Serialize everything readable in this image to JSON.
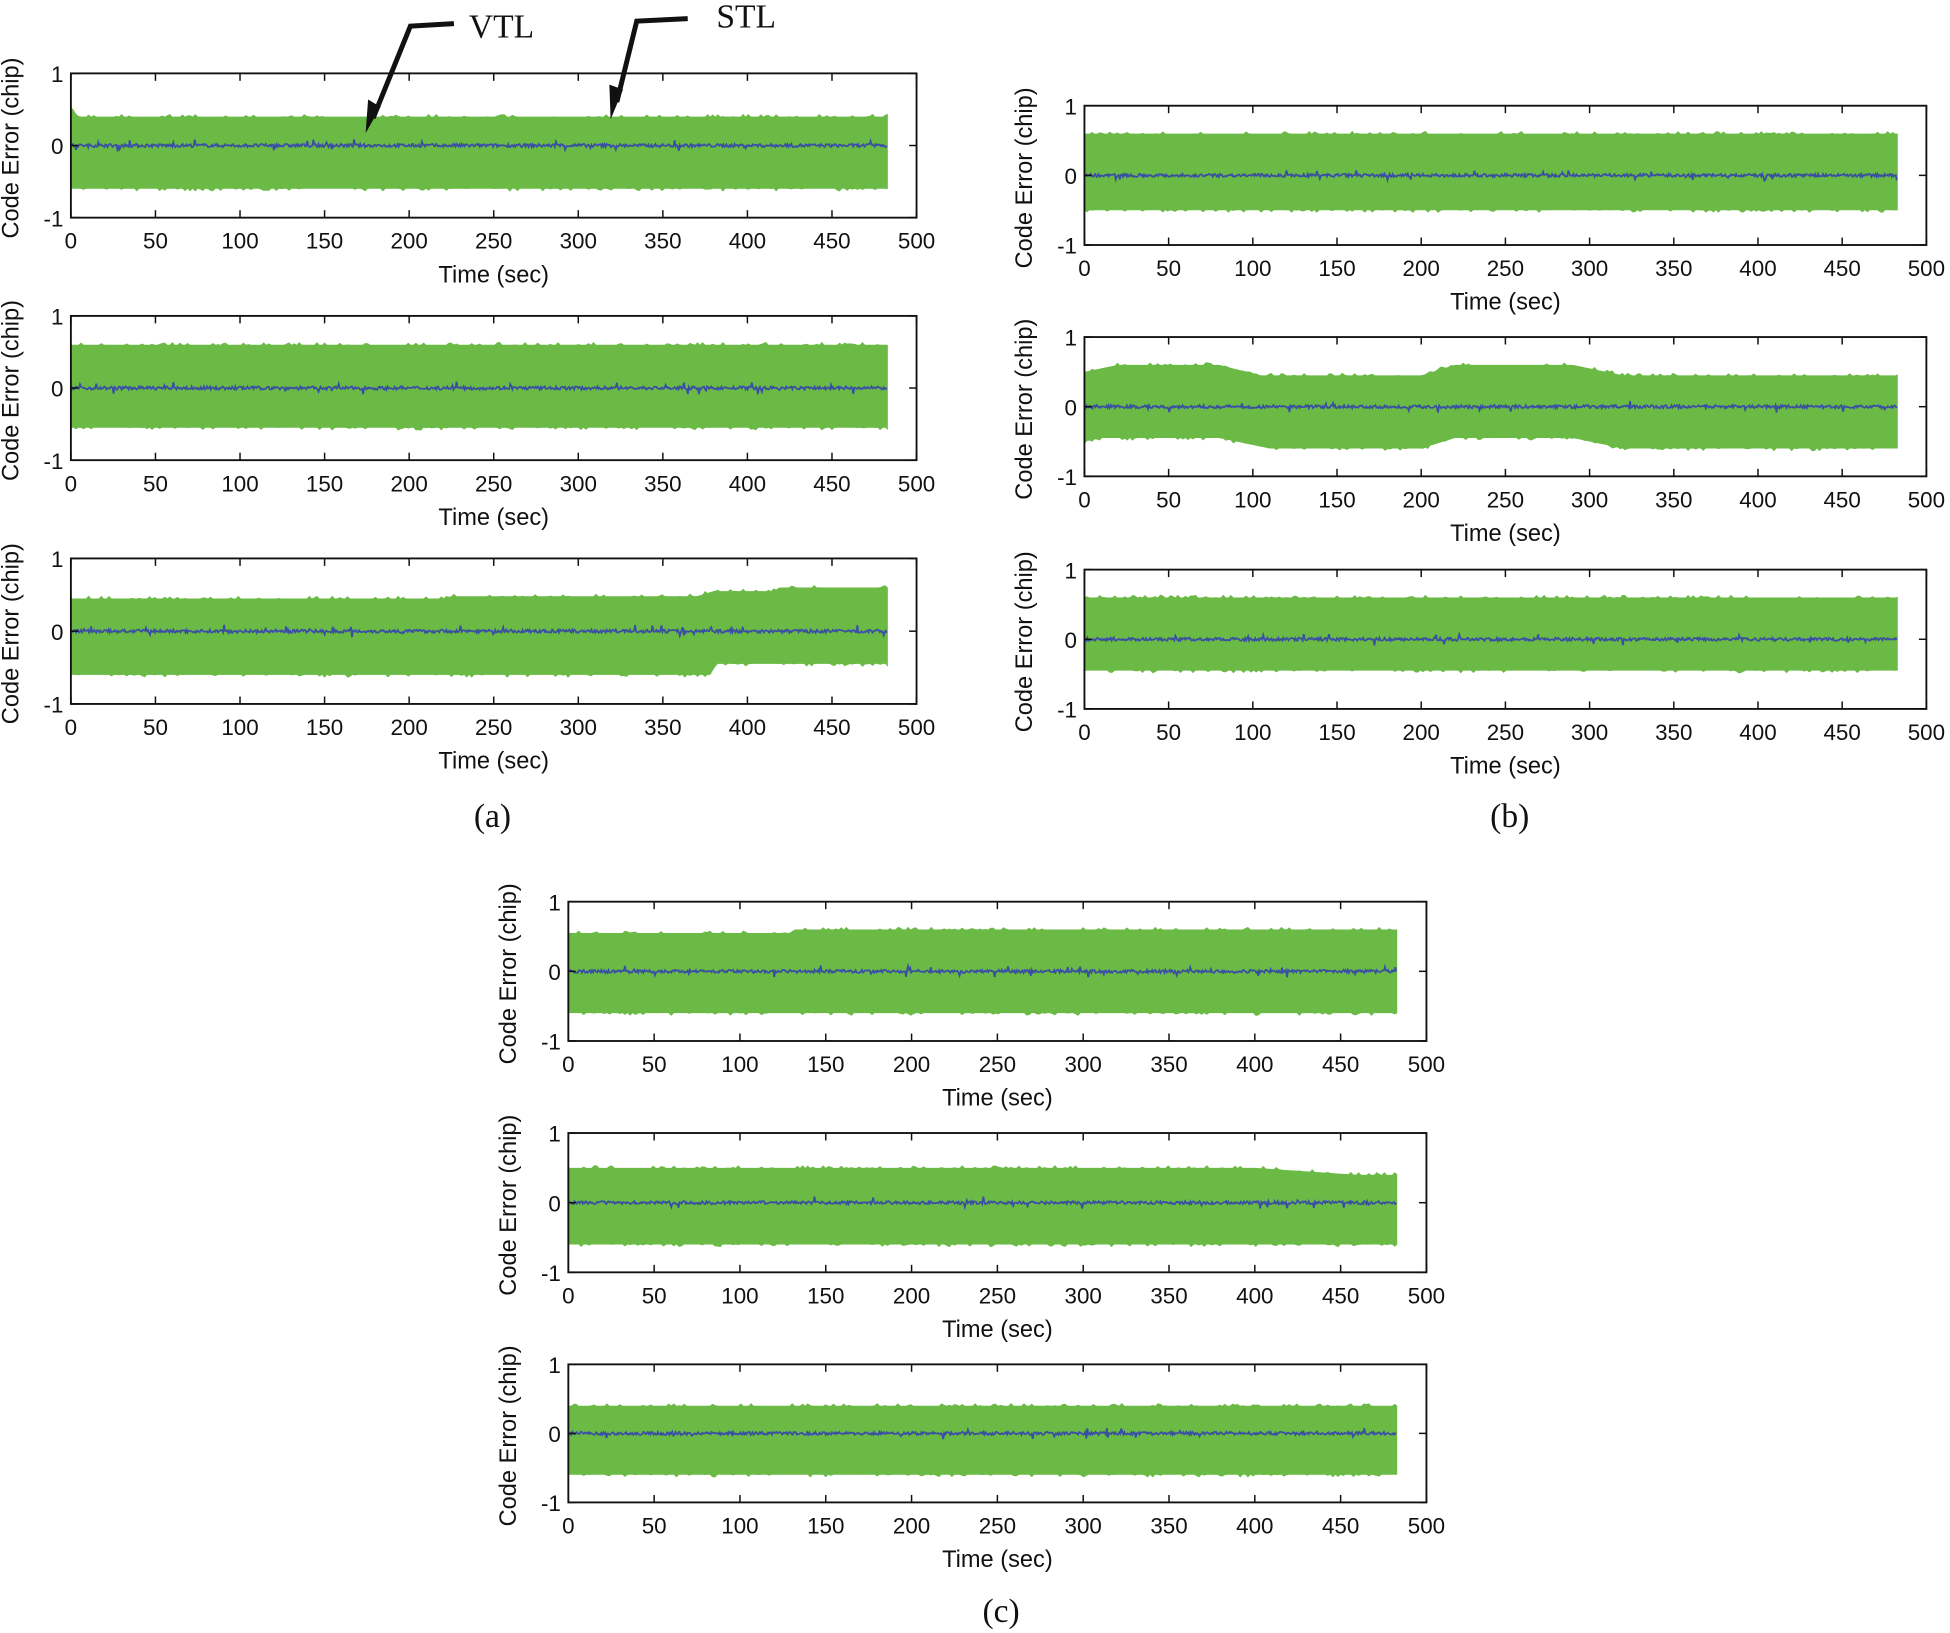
{
  "colors": {
    "stl": "#6aba45",
    "vtl": "#3a4fa3",
    "axis": "#111111"
  },
  "annotations": {
    "vtl": "VTL",
    "stl": "STL"
  },
  "panel_labels": {
    "a": "(a)",
    "b": "(b)",
    "c": "(c)"
  },
  "chart_data": [
    {
      "type": "area",
      "panel": "a",
      "index": 1,
      "xlabel": "Time (sec)",
      "ylabel": "Code Error (chip)",
      "xlim": [
        0,
        500
      ],
      "ylim": [
        -1,
        1
      ],
      "xticks": [
        0,
        50,
        100,
        150,
        200,
        250,
        300,
        350,
        400,
        450,
        500
      ],
      "yticks": [
        -1,
        0,
        1
      ],
      "grid": false,
      "x_end": 483,
      "series": [
        {
          "name": "STL",
          "upper": [
            [
              0,
              0.5
            ],
            [
              5,
              0.4
            ],
            [
              483,
              0.4
            ]
          ],
          "lower": [
            [
              0,
              -0.6
            ],
            [
              483,
              -0.6
            ]
          ]
        },
        {
          "name": "VTL",
          "amplitude": 0.05
        }
      ]
    },
    {
      "type": "area",
      "panel": "a",
      "index": 2,
      "xlabel": "Time (sec)",
      "ylabel": "Code Error (chip)",
      "xlim": [
        0,
        500
      ],
      "ylim": [
        -1,
        1
      ],
      "xticks": [
        0,
        50,
        100,
        150,
        200,
        250,
        300,
        350,
        400,
        450,
        500
      ],
      "yticks": [
        -1,
        0,
        1
      ],
      "grid": false,
      "x_end": 483,
      "series": [
        {
          "name": "STL",
          "upper": [
            [
              0,
              0.6
            ],
            [
              483,
              0.6
            ]
          ],
          "lower": [
            [
              0,
              -0.55
            ],
            [
              483,
              -0.55
            ]
          ]
        },
        {
          "name": "VTL",
          "amplitude": 0.05
        }
      ]
    },
    {
      "type": "area",
      "panel": "a",
      "index": 3,
      "xlabel": "Time (sec)",
      "ylabel": "Code Error (chip)",
      "xlim": [
        0,
        500
      ],
      "ylim": [
        -1,
        1
      ],
      "xticks": [
        0,
        50,
        100,
        150,
        200,
        250,
        300,
        350,
        400,
        450,
        500
      ],
      "yticks": [
        -1,
        0,
        1
      ],
      "grid": false,
      "x_end": 483,
      "series": [
        {
          "name": "STL",
          "upper": [
            [
              0,
              0.45
            ],
            [
              220,
              0.45
            ],
            [
              225,
              0.48
            ],
            [
              370,
              0.48
            ],
            [
              380,
              0.55
            ],
            [
              415,
              0.55
            ],
            [
              420,
              0.6
            ],
            [
              483,
              0.6
            ]
          ],
          "lower": [
            [
              0,
              -0.6
            ],
            [
              378,
              -0.6
            ],
            [
              382,
              -0.45
            ],
            [
              483,
              -0.45
            ]
          ]
        },
        {
          "name": "VTL",
          "amplitude": 0.05
        }
      ]
    },
    {
      "type": "area",
      "panel": "b",
      "index": 1,
      "xlabel": "Time (sec)",
      "ylabel": "Code Error (chip)",
      "xlim": [
        0,
        500
      ],
      "ylim": [
        -1,
        1
      ],
      "xticks": [
        0,
        50,
        100,
        150,
        200,
        250,
        300,
        350,
        400,
        450,
        500
      ],
      "yticks": [
        -1,
        0,
        1
      ],
      "grid": false,
      "x_end": 483,
      "series": [
        {
          "name": "STL",
          "upper": [
            [
              0,
              0.6
            ],
            [
              483,
              0.6
            ]
          ],
          "lower": [
            [
              0,
              -0.5
            ],
            [
              483,
              -0.5
            ]
          ]
        },
        {
          "name": "VTL",
          "amplitude": 0.05
        }
      ]
    },
    {
      "type": "area",
      "panel": "b",
      "index": 2,
      "xlabel": "Time (sec)",
      "ylabel": "Code Error (chip)",
      "xlim": [
        0,
        500
      ],
      "ylim": [
        -1,
        1
      ],
      "xticks": [
        0,
        50,
        100,
        150,
        200,
        250,
        300,
        350,
        400,
        450,
        500
      ],
      "yticks": [
        -1,
        0,
        1
      ],
      "grid": false,
      "x_end": 483,
      "series": [
        {
          "name": "STL",
          "upper": [
            [
              0,
              0.5
            ],
            [
              20,
              0.6
            ],
            [
              80,
              0.6
            ],
            [
              105,
              0.45
            ],
            [
              200,
              0.45
            ],
            [
              220,
              0.6
            ],
            [
              290,
              0.6
            ],
            [
              320,
              0.45
            ],
            [
              483,
              0.45
            ]
          ],
          "lower": [
            [
              0,
              -0.5
            ],
            [
              10,
              -0.45
            ],
            [
              80,
              -0.45
            ],
            [
              110,
              -0.6
            ],
            [
              200,
              -0.6
            ],
            [
              220,
              -0.45
            ],
            [
              290,
              -0.45
            ],
            [
              320,
              -0.6
            ],
            [
              483,
              -0.6
            ]
          ]
        },
        {
          "name": "VTL",
          "amplitude": 0.05
        }
      ]
    },
    {
      "type": "area",
      "panel": "b",
      "index": 3,
      "xlabel": "Time (sec)",
      "ylabel": "Code Error (chip)",
      "xlim": [
        0,
        500
      ],
      "ylim": [
        -1,
        1
      ],
      "xticks": [
        0,
        50,
        100,
        150,
        200,
        250,
        300,
        350,
        400,
        450,
        500
      ],
      "yticks": [
        -1,
        0,
        1
      ],
      "grid": false,
      "x_end": 483,
      "series": [
        {
          "name": "STL",
          "upper": [
            [
              0,
              0.6
            ],
            [
              483,
              0.6
            ]
          ],
          "lower": [
            [
              0,
              -0.45
            ],
            [
              483,
              -0.45
            ]
          ]
        },
        {
          "name": "VTL",
          "amplitude": 0.05
        }
      ]
    },
    {
      "type": "area",
      "panel": "c",
      "index": 1,
      "xlabel": "Time (sec)",
      "ylabel": "Code Error (chip)",
      "xlim": [
        0,
        500
      ],
      "ylim": [
        -1,
        1
      ],
      "xticks": [
        0,
        50,
        100,
        150,
        200,
        250,
        300,
        350,
        400,
        450,
        500
      ],
      "yticks": [
        -1,
        0,
        1
      ],
      "grid": false,
      "x_end": 483,
      "series": [
        {
          "name": "STL",
          "upper": [
            [
              0,
              0.55
            ],
            [
              130,
              0.55
            ],
            [
              132,
              0.6
            ],
            [
              483,
              0.6
            ]
          ],
          "lower": [
            [
              0,
              -0.6
            ],
            [
              483,
              -0.6
            ]
          ]
        },
        {
          "name": "VTL",
          "amplitude": 0.05
        }
      ]
    },
    {
      "type": "area",
      "panel": "c",
      "index": 2,
      "xlabel": "Time (sec)",
      "ylabel": "Code Error (chip)",
      "xlim": [
        0,
        500
      ],
      "ylim": [
        -1,
        1
      ],
      "xticks": [
        0,
        50,
        100,
        150,
        200,
        250,
        300,
        350,
        400,
        450,
        500
      ],
      "yticks": [
        -1,
        0,
        1
      ],
      "grid": false,
      "x_end": 483,
      "series": [
        {
          "name": "STL",
          "upper": [
            [
              0,
              0.5
            ],
            [
              400,
              0.5
            ],
            [
              460,
              0.4
            ],
            [
              483,
              0.4
            ]
          ],
          "lower": [
            [
              0,
              -0.6
            ],
            [
              483,
              -0.6
            ]
          ]
        },
        {
          "name": "VTL",
          "amplitude": 0.05
        }
      ]
    },
    {
      "type": "area",
      "panel": "c",
      "index": 3,
      "xlabel": "Time (sec)",
      "ylabel": "Code Error (chip)",
      "xlim": [
        0,
        500
      ],
      "ylim": [
        -1,
        1
      ],
      "xticks": [
        0,
        50,
        100,
        150,
        200,
        250,
        300,
        350,
        400,
        450,
        500
      ],
      "yticks": [
        -1,
        0,
        1
      ],
      "grid": false,
      "x_end": 483,
      "series": [
        {
          "name": "STL",
          "upper": [
            [
              0,
              0.4
            ],
            [
              483,
              0.4
            ]
          ],
          "lower": [
            [
              0,
              -0.6
            ],
            [
              483,
              -0.6
            ]
          ]
        },
        {
          "name": "VTL",
          "amplitude": 0.05
        }
      ]
    }
  ]
}
